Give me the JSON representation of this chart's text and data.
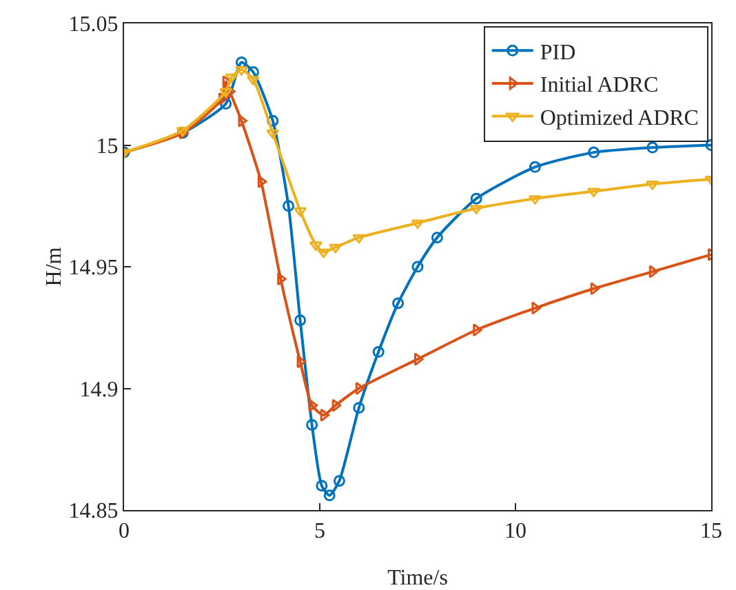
{
  "chart_data": {
    "type": "line",
    "xlabel": "Time/s",
    "ylabel": "H/m",
    "xlim": [
      0,
      15
    ],
    "ylim": [
      14.85,
      15.05
    ],
    "xticks": [
      0,
      5,
      10,
      15
    ],
    "yticks": [
      {
        "value": 14.85,
        "label": "14.85"
      },
      {
        "value": 14.9,
        "label": "14.9"
      },
      {
        "value": 14.95,
        "label": "14.95"
      },
      {
        "value": 15,
        "label": "15"
      },
      {
        "value": 15.05,
        "label": "15.05"
      }
    ],
    "grid": false,
    "legend": "top right",
    "series": [
      {
        "name": "PID",
        "color": "#0072bd",
        "marker": "circle",
        "x": [
          0,
          1.5,
          2.6,
          3,
          3.3,
          3.8,
          4.2,
          4.5,
          4.8,
          5.05,
          5.25,
          5.5,
          6,
          6.5,
          7,
          7.5,
          8,
          9,
          10.5,
          12,
          13.5,
          15
        ],
        "values": [
          14.997,
          15.005,
          15.017,
          15.034,
          15.03,
          15.01,
          14.975,
          14.928,
          14.885,
          14.86,
          14.856,
          14.862,
          14.892,
          14.915,
          14.935,
          14.95,
          14.962,
          14.978,
          14.991,
          14.997,
          14.999,
          15.0
        ]
      },
      {
        "name": "Initial ADRC",
        "color": "#d95319",
        "marker": "triangle-right",
        "x": [
          0,
          1.5,
          2.5,
          2.6,
          2.7,
          3,
          3.5,
          4,
          4.5,
          4.8,
          5.1,
          5.4,
          6,
          7.5,
          9,
          10.5,
          12,
          13.5,
          15
        ],
        "values": [
          14.997,
          15.005,
          15.019,
          15.026,
          15.022,
          15.01,
          14.985,
          14.945,
          14.911,
          14.893,
          14.889,
          14.893,
          14.9,
          14.912,
          14.924,
          14.933,
          14.941,
          14.948,
          14.955
        ]
      },
      {
        "name": "Optimized ADRC",
        "color": "#edb120",
        "marker": "triangle-down",
        "x": [
          0,
          1.5,
          2.6,
          2.75,
          3,
          3.3,
          3.8,
          4.5,
          4.9,
          5.1,
          5.4,
          6,
          7.5,
          9,
          10.5,
          12,
          13.5,
          15
        ],
        "values": [
          14.997,
          15.006,
          15.022,
          15.028,
          15.031,
          15.027,
          15.005,
          14.973,
          14.959,
          14.956,
          14.958,
          14.962,
          14.968,
          14.974,
          14.978,
          14.981,
          14.984,
          14.986
        ]
      }
    ]
  }
}
